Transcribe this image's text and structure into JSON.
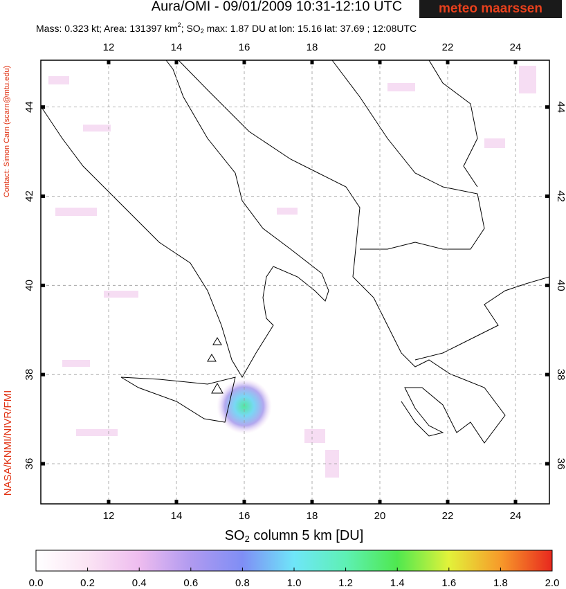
{
  "header": {
    "title": "Aura/OMI - 09/01/2009 10:31-12:10 UTC",
    "logo": "meteo maarssen",
    "subtitle": [
      "Mass: 0.323 kt; Area: 131397 km",
      "2",
      "; SO",
      "2",
      " max: 1.87 DU at lon: 15.16 lat: 37.69 ; 12:08UTC"
    ]
  },
  "side_texts": {
    "contact": "Contact: Simon Carn (scarn@mtu.edu)",
    "credit": "NASA/KNMI/NIVR/FMI"
  },
  "map": {
    "xlim": [
      10,
      25
    ],
    "ylim": [
      35.1,
      45.05
    ],
    "xticks": [
      12,
      14,
      16,
      18,
      20,
      22,
      24
    ],
    "yticks": [
      36,
      38,
      40,
      42,
      44
    ],
    "grid": true
  },
  "colorbar": {
    "label": [
      "SO",
      "2",
      " column 5 km [DU]"
    ],
    "lim": [
      0,
      2
    ],
    "ticks": [
      {
        "value": 0,
        "label": "0.0"
      },
      {
        "value": 0.2,
        "label": "0.2"
      },
      {
        "value": 0.4,
        "label": "0.4"
      },
      {
        "value": 0.6,
        "label": "0.6"
      },
      {
        "value": 0.8,
        "label": "0.8"
      },
      {
        "value": 1,
        "label": "1.0"
      },
      {
        "value": 1.2,
        "label": "1.2"
      },
      {
        "value": 1.4,
        "label": "1.4"
      },
      {
        "value": 1.6,
        "label": "1.6"
      },
      {
        "value": 1.8,
        "label": "1.8"
      },
      {
        "value": 2,
        "label": "2.0"
      }
    ]
  }
}
